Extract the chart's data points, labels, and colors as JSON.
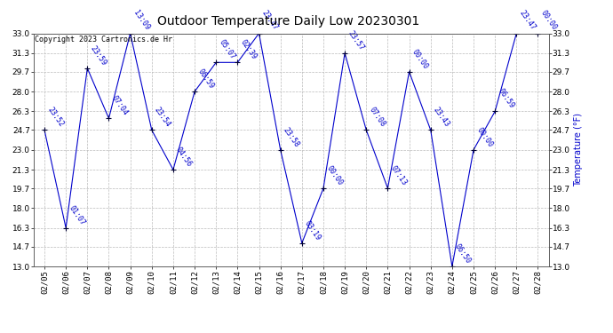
{
  "title": "Outdoor Temperature Daily Low 20230301",
  "ylabel": "Temperature (°F)",
  "copyright": "Copyright 2023 Cartronics.de Hr",
  "background_color": "#ffffff",
  "plot_bg_color": "#ffffff",
  "grid_color": "#bbbbbb",
  "line_color": "#0000cc",
  "point_color": "#000033",
  "label_color": "#0000cc",
  "ylim": [
    13.0,
    33.0
  ],
  "yticks": [
    13.0,
    14.7,
    16.3,
    18.0,
    19.7,
    21.3,
    23.0,
    24.7,
    26.3,
    28.0,
    29.7,
    31.3,
    33.0
  ],
  "data_points": [
    {
      "date": "02/05",
      "temp": 24.7,
      "time": "23:52"
    },
    {
      "date": "02/06",
      "temp": 16.3,
      "time": "01:07"
    },
    {
      "date": "02/07",
      "temp": 30.0,
      "time": "23:59"
    },
    {
      "date": "02/08",
      "temp": 25.7,
      "time": "07:04"
    },
    {
      "date": "02/09",
      "temp": 33.0,
      "time": "13:09"
    },
    {
      "date": "02/10",
      "temp": 24.7,
      "time": "23:54"
    },
    {
      "date": "02/11",
      "temp": 21.3,
      "time": "04:56"
    },
    {
      "date": "02/12",
      "temp": 28.0,
      "time": "06:59"
    },
    {
      "date": "02/13",
      "temp": 30.5,
      "time": "05:07"
    },
    {
      "date": "02/14",
      "temp": 30.5,
      "time": "02:39"
    },
    {
      "date": "02/15",
      "temp": 33.0,
      "time": "23:47"
    },
    {
      "date": "02/16",
      "temp": 23.0,
      "time": "23:58"
    },
    {
      "date": "02/17",
      "temp": 15.0,
      "time": "03:19"
    },
    {
      "date": "02/18",
      "temp": 19.7,
      "time": "00:00"
    },
    {
      "date": "02/19",
      "temp": 31.3,
      "time": "23:57"
    },
    {
      "date": "02/20",
      "temp": 24.7,
      "time": "07:08"
    },
    {
      "date": "02/21",
      "temp": 19.7,
      "time": "07:13"
    },
    {
      "date": "02/22",
      "temp": 29.7,
      "time": "00:00"
    },
    {
      "date": "02/23",
      "temp": 24.7,
      "time": "23:43"
    },
    {
      "date": "02/24",
      "temp": 13.0,
      "time": "06:50"
    },
    {
      "date": "02/25",
      "temp": 23.0,
      "time": "00:00"
    },
    {
      "date": "02/26",
      "temp": 26.3,
      "time": "06:59"
    },
    {
      "date": "02/27",
      "temp": 33.0,
      "time": "23:47"
    },
    {
      "date": "02/28",
      "temp": 33.0,
      "time": "00:00"
    }
  ],
  "title_fontsize": 10,
  "label_fontsize": 6,
  "axis_fontsize": 6.5,
  "copyright_fontsize": 6
}
